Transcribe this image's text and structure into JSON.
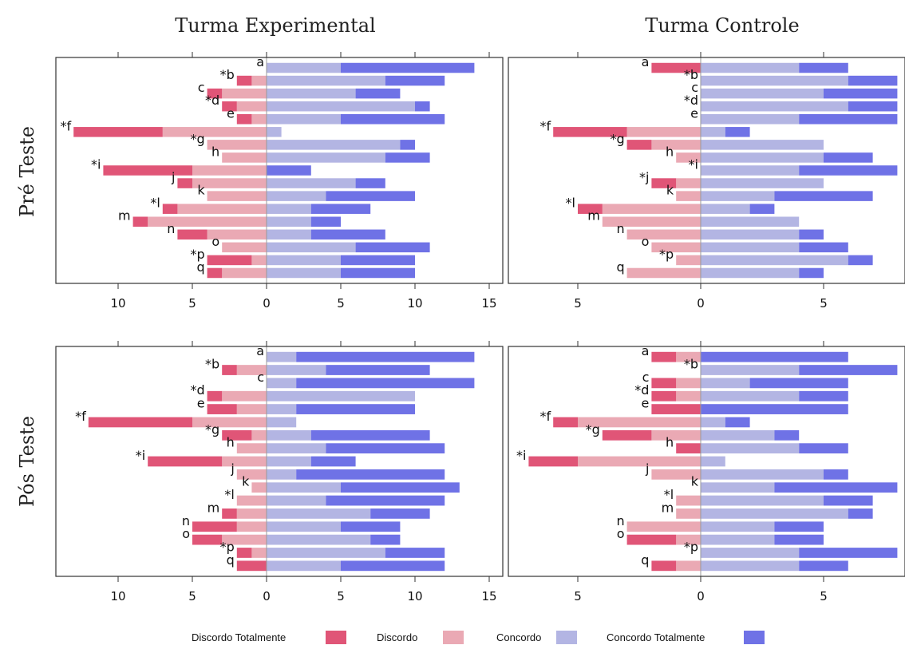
{
  "figure": {
    "col_titles": [
      "Turma Experimental",
      "Turma Controle"
    ],
    "row_titles": [
      "Pré Teste",
      "Pós Teste"
    ]
  },
  "legend": [
    {
      "label": "Discordo Totalmente",
      "color": "#e05577"
    },
    {
      "label": "Discordo",
      "color": "#eaa9b4"
    },
    {
      "label": "Concordo",
      "color": "#b3b5e3"
    },
    {
      "label": "Concordo Totalmente",
      "color": "#6f72e6"
    }
  ],
  "chart_data": [
    {
      "type": "bar",
      "orientation": "horizontal-diverging",
      "group": "Turma Experimental",
      "phase": "Pré Teste",
      "xlim": [
        -14,
        15
      ],
      "xticks": [
        -10,
        -5,
        0,
        5,
        10,
        15
      ],
      "xtick_labels": [
        "10",
        "5",
        "0",
        "5",
        "10",
        "15"
      ],
      "categories": [
        "a",
        "*b",
        "c",
        "*d",
        "e",
        "*f",
        "*g",
        "h",
        "*i",
        "j",
        "k",
        "*l",
        "m",
        "n",
        "o",
        "*p",
        "q"
      ],
      "series": [
        {
          "name": "Discordo Totalmente",
          "values": [
            0,
            1,
            1,
            1,
            1,
            6,
            0,
            0,
            6,
            1,
            0,
            1,
            1,
            2,
            0,
            3,
            1
          ]
        },
        {
          "name": "Discordo",
          "values": [
            0,
            1,
            3,
            2,
            1,
            7,
            4,
            3,
            5,
            5,
            4,
            6,
            8,
            4,
            3,
            1,
            3
          ]
        },
        {
          "name": "Concordo",
          "values": [
            5,
            8,
            6,
            10,
            5,
            1,
            9,
            8,
            0,
            6,
            4,
            3,
            3,
            3,
            6,
            5,
            5
          ]
        },
        {
          "name": "Concordo Totalmente",
          "values": [
            9,
            4,
            3,
            1,
            7,
            0,
            1,
            3,
            3,
            2,
            6,
            4,
            2,
            5,
            5,
            5,
            5
          ]
        }
      ]
    },
    {
      "type": "bar",
      "orientation": "horizontal-diverging",
      "group": "Turma Controle",
      "phase": "Pré Teste",
      "xlim": [
        -7,
        8
      ],
      "xticks": [
        -5,
        0,
        5
      ],
      "xtick_labels": [
        "5",
        "0",
        "5"
      ],
      "categories": [
        "a",
        "*b",
        "c",
        "*d",
        "e",
        "*f",
        "*g",
        "h",
        "*i",
        "*j",
        "k",
        "*l",
        "m",
        "n",
        "o",
        "*p",
        "q"
      ],
      "series": [
        {
          "name": "Discordo Totalmente",
          "values": [
            2,
            0,
            0,
            0,
            0,
            3,
            1,
            0,
            0,
            1,
            0,
            1,
            0,
            0,
            0,
            0,
            0
          ]
        },
        {
          "name": "Discordo",
          "values": [
            0,
            0,
            0,
            0,
            0,
            3,
            2,
            1,
            0,
            1,
            1,
            4,
            4,
            3,
            2,
            1,
            3
          ]
        },
        {
          "name": "Concordo",
          "values": [
            4,
            6,
            5,
            6,
            4,
            1,
            5,
            5,
            4,
            5,
            3,
            2,
            4,
            4,
            4,
            6,
            4
          ]
        },
        {
          "name": "Concordo Totalmente",
          "values": [
            2,
            2,
            3,
            2,
            4,
            1,
            0,
            2,
            4,
            0,
            4,
            1,
            0,
            1,
            2,
            1,
            1
          ]
        }
      ]
    },
    {
      "type": "bar",
      "orientation": "horizontal-diverging",
      "group": "Turma Experimental",
      "phase": "Pós Teste",
      "xlim": [
        -14,
        15
      ],
      "xticks": [
        -10,
        -5,
        0,
        5,
        10,
        15
      ],
      "xtick_labels": [
        "10",
        "5",
        "0",
        "5",
        "10",
        "15"
      ],
      "categories": [
        "a",
        "*b",
        "c",
        "*d",
        "e",
        "*f",
        "*g",
        "h",
        "*i",
        "j",
        "k",
        "*l",
        "m",
        "n",
        "o",
        "*p",
        "q"
      ],
      "series": [
        {
          "name": "Discordo Totalmente",
          "values": [
            0,
            1,
            0,
            1,
            2,
            7,
            2,
            0,
            5,
            0,
            0,
            0,
            1,
            3,
            2,
            1,
            2
          ]
        },
        {
          "name": "Discordo",
          "values": [
            0,
            2,
            0,
            3,
            2,
            5,
            1,
            2,
            3,
            2,
            1,
            2,
            2,
            2,
            3,
            1,
            0
          ]
        },
        {
          "name": "Concordo",
          "values": [
            2,
            4,
            2,
            10,
            2,
            2,
            3,
            4,
            3,
            2,
            5,
            4,
            7,
            5,
            7,
            8,
            5
          ]
        },
        {
          "name": "Concordo Totalmente",
          "values": [
            12,
            7,
            12,
            0,
            8,
            0,
            8,
            8,
            3,
            10,
            8,
            8,
            4,
            4,
            2,
            4,
            7
          ]
        }
      ]
    },
    {
      "type": "bar",
      "orientation": "horizontal-diverging",
      "group": "Turma Controle",
      "phase": "Pós Teste",
      "xlim": [
        -7,
        8
      ],
      "xticks": [
        -5,
        0,
        5
      ],
      "xtick_labels": [
        "5",
        "0",
        "5"
      ],
      "categories": [
        "a",
        "*b",
        "c",
        "*d",
        "e",
        "*f",
        "*g",
        "h",
        "*i",
        "j",
        "k",
        "*l",
        "m",
        "n",
        "o",
        "*p",
        "q"
      ],
      "series": [
        {
          "name": "Discordo Totalmente",
          "values": [
            1,
            0,
            1,
            1,
            2,
            1,
            2,
            1,
            2,
            0,
            0,
            0,
            0,
            0,
            2,
            0,
            1
          ]
        },
        {
          "name": "Discordo",
          "values": [
            1,
            0,
            1,
            1,
            0,
            5,
            2,
            0,
            5,
            2,
            0,
            1,
            1,
            3,
            1,
            0,
            1
          ]
        },
        {
          "name": "Concordo",
          "values": [
            0,
            4,
            2,
            4,
            0,
            1,
            3,
            4,
            1,
            5,
            3,
            5,
            6,
            3,
            3,
            4,
            4
          ]
        },
        {
          "name": "Concordo Totalmente",
          "values": [
            6,
            4,
            4,
            2,
            6,
            1,
            1,
            2,
            0,
            1,
            5,
            2,
            1,
            2,
            2,
            4,
            2
          ]
        }
      ]
    }
  ]
}
